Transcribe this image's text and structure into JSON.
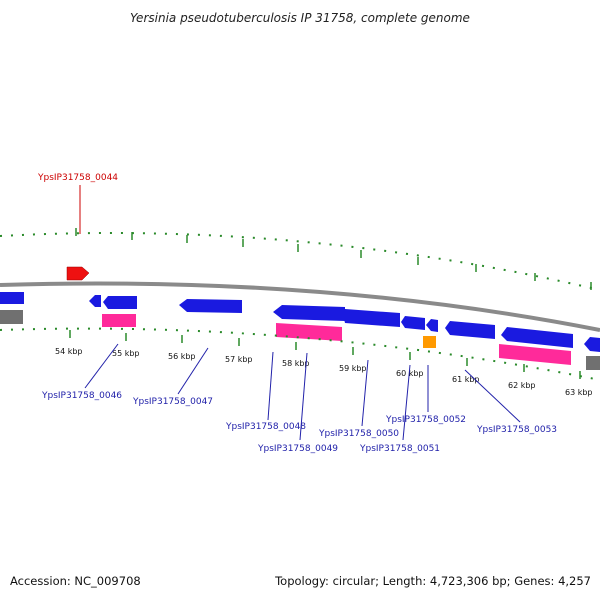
{
  "title": "Yersinia pseudotuberculosis IP 31758, complete genome",
  "footer": {
    "accession": "Accession: NC_009708",
    "topology": "Topology: circular; Length: 4,723,306 bp; Genes: 4,257"
  },
  "colors": {
    "forward_cds": "#ee1111",
    "reverse_cds": "#1a1ae0",
    "rna": "#ff2a9a",
    "misc": "#ff9900",
    "backbone": "#8a8a8a",
    "tick": "#2a8a2a",
    "label": "#2222aa",
    "highlight_label": "#cc0000"
  },
  "kbp_labels": [
    "54 kbp",
    "55 kbp",
    "56 kbp",
    "57 kbp",
    "58 kbp",
    "59 kbp",
    "60 kbp",
    "61 kbp",
    "62 kbp",
    "63 kbp"
  ],
  "gene_labels": {
    "g44": "YpsIP31758_0044",
    "g46": "YpsIP31758_0046",
    "g47": "YpsIP31758_0047",
    "g48": "YpsIP31758_0048",
    "g49": "YpsIP31758_0049",
    "g50": "YpsIP31758_0050",
    "g51": "YpsIP31758_0051",
    "g52": "YpsIP31758_0052",
    "g53": "YpsIP31758_0053"
  }
}
